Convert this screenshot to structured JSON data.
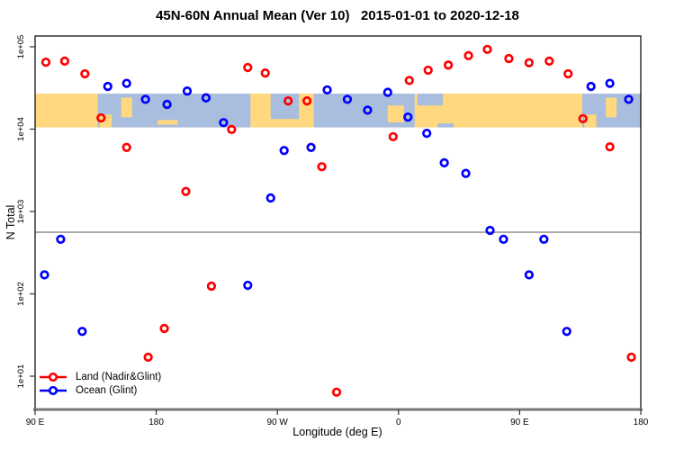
{
  "title": "45N-60N Annual Mean (Ver 10)   2015-01-01 to 2020-12-18",
  "chart_data": {
    "type": "scatter",
    "title": "45N-60N Annual Mean (Ver 10)   2015-01-01 to 2020-12-18",
    "xlabel": "Longitude (deg E)",
    "ylabel": "N Total",
    "x_axis": {
      "range": [
        90,
        540
      ],
      "ticks": [
        90,
        180,
        270,
        360,
        450,
        540
      ],
      "tick_labels": [
        "90 E",
        "180",
        "90 W",
        "0",
        "90 E",
        "180"
      ],
      "note": "longitude wraps: 90E to 180 to 90W to 0 to 90E to 180"
    },
    "y_axis": {
      "scale": "log10",
      "ticks": [
        10,
        100,
        1000,
        10000,
        100000
      ],
      "tick_labels": [
        "1e+01",
        "1e+02",
        "1e+03",
        "1e+04",
        "1e+05"
      ],
      "range": [
        4,
        135000
      ]
    },
    "grid": "off",
    "legend_position": "bottom-left",
    "threshold_line": {
      "value": 560,
      "color": "#aaaaaa"
    },
    "map_band": {
      "description": "45N-60N world-map strip drawn as background band",
      "value_range": [
        10500,
        27000
      ],
      "land_color": "#FFD87F",
      "ocean_color": "#A9BDDE",
      "ocean_patches": [
        {
          "lon0": 136.5,
          "lon1": 250,
          "top": 0,
          "bottom": 1
        },
        {
          "lon0": 265,
          "lon1": 286,
          "top": 0,
          "bottom": 0.75
        },
        {
          "lon0": 297,
          "lon1": 372,
          "top": 0,
          "bottom": 1
        },
        {
          "lon0": 374,
          "lon1": 393,
          "top": 0,
          "bottom": 0.35
        },
        {
          "lon0": 389,
          "lon1": 401,
          "top": 0.88,
          "bottom": 1
        },
        {
          "lon0": 496.5,
          "lon1": 540,
          "top": 0,
          "bottom": 1
        }
      ],
      "island_patches": [
        {
          "lon0": 154,
          "lon1": 162,
          "top": 0.12,
          "bottom": 0.7
        },
        {
          "lon0": 138,
          "lon1": 147,
          "top": 0.62,
          "bottom": 1
        },
        {
          "lon0": 181,
          "lon1": 196,
          "top": 0.78,
          "bottom": 0.92
        },
        {
          "lon0": 352,
          "lon1": 364,
          "top": 0.35,
          "bottom": 0.85
        },
        {
          "lon0": 514,
          "lon1": 522,
          "top": 0.12,
          "bottom": 0.7
        },
        {
          "lon0": 498,
          "lon1": 507,
          "top": 0.62,
          "bottom": 1
        }
      ]
    },
    "series": [
      {
        "name": "Land (Nadir&Glint)",
        "color": "#FF0000",
        "marker": "open-circle",
        "points": [
          [
            98,
            65000
          ],
          [
            112,
            67000
          ],
          [
            127,
            47000
          ],
          [
            139,
            13700
          ],
          [
            158,
            6000
          ],
          [
            174,
            17
          ],
          [
            186,
            38
          ],
          [
            202,
            1750
          ],
          [
            221,
            124
          ],
          [
            236,
            9900
          ],
          [
            248,
            56000
          ],
          [
            261,
            48000
          ],
          [
            278,
            22000
          ],
          [
            292,
            22000
          ],
          [
            303,
            3500
          ],
          [
            314,
            6.4
          ],
          [
            356,
            8100
          ],
          [
            368,
            39000
          ],
          [
            382,
            52000
          ],
          [
            397,
            60000
          ],
          [
            412,
            78000
          ],
          [
            426,
            93000
          ],
          [
            442,
            72000
          ],
          [
            457,
            64000
          ],
          [
            472,
            67000
          ],
          [
            486,
            47000
          ],
          [
            497,
            13400
          ],
          [
            517,
            6100
          ],
          [
            533,
            17
          ]
        ]
      },
      {
        "name": "Ocean (Glint)",
        "color": "#0000FF",
        "marker": "open-circle",
        "points": [
          [
            97,
            170
          ],
          [
            109,
            460
          ],
          [
            125,
            35
          ],
          [
            144,
            33000
          ],
          [
            158,
            36000
          ],
          [
            172,
            23000
          ],
          [
            188,
            20000
          ],
          [
            203,
            29000
          ],
          [
            217,
            24000
          ],
          [
            230,
            12000
          ],
          [
            248,
            127
          ],
          [
            265,
            1460
          ],
          [
            275,
            5500
          ],
          [
            295,
            6000
          ],
          [
            307,
            30000
          ],
          [
            322,
            23000
          ],
          [
            337,
            17000
          ],
          [
            352,
            28000
          ],
          [
            367,
            14000
          ],
          [
            381,
            8900
          ],
          [
            394,
            3900
          ],
          [
            410,
            2900
          ],
          [
            428,
            590
          ],
          [
            438,
            460
          ],
          [
            457,
            170
          ],
          [
            468,
            460
          ],
          [
            485,
            35
          ],
          [
            503,
            33000
          ],
          [
            517,
            36000
          ],
          [
            531,
            23000
          ]
        ]
      }
    ]
  },
  "legend": {
    "items": [
      {
        "label": "Land (Nadir&Glint)",
        "color": "#FF0000"
      },
      {
        "label": "Ocean (Glint)",
        "color": "#0000FF"
      }
    ]
  }
}
